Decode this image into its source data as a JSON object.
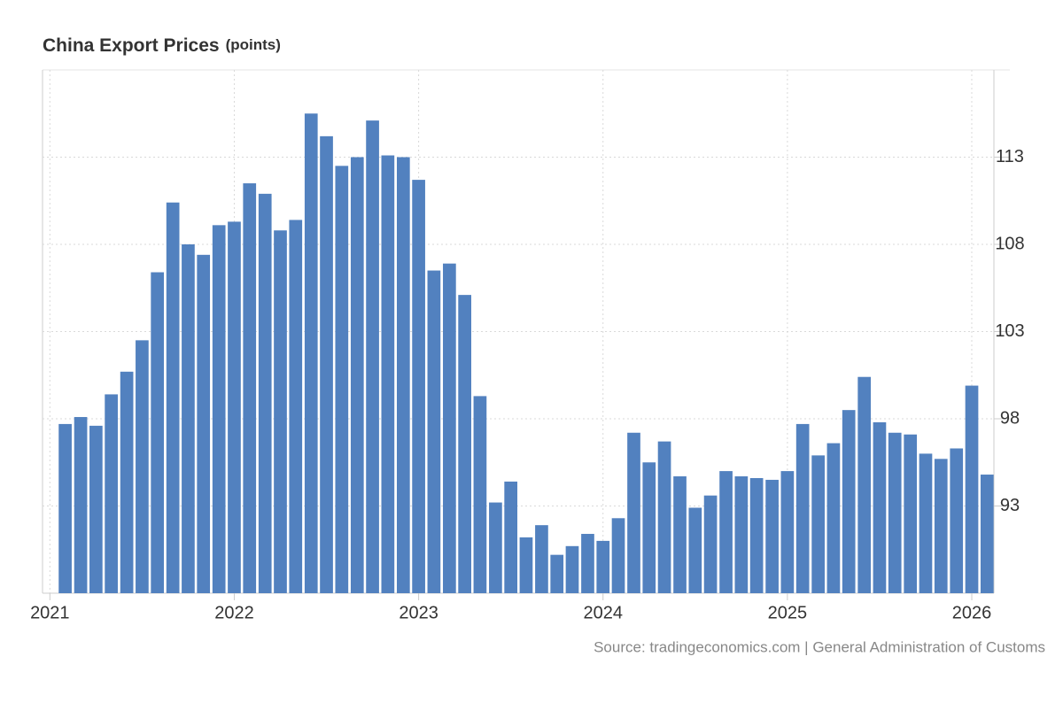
{
  "chart_data": {
    "type": "bar",
    "title": "China Export Prices",
    "unit": "(points)",
    "source": "Source: tradingeconomics.com | General Administration of Customs",
    "color": "#5281bf",
    "grid": true,
    "x": [
      2021.083,
      2021.167,
      2021.25,
      2021.333,
      2021.417,
      2021.5,
      2021.583,
      2021.667,
      2021.75,
      2021.833,
      2021.917,
      2022.0,
      2022.083,
      2022.167,
      2022.25,
      2022.333,
      2022.417,
      2022.5,
      2022.583,
      2022.667,
      2022.75,
      2022.833,
      2022.917,
      2023.0,
      2023.083,
      2023.167,
      2023.25,
      2023.333,
      2023.417,
      2023.5,
      2023.583,
      2023.667,
      2023.75,
      2023.833,
      2023.917,
      2024.0,
      2024.083,
      2024.167,
      2024.25,
      2024.333,
      2024.417,
      2024.5,
      2024.583,
      2024.667,
      2024.75,
      2024.833,
      2024.917,
      2025.0,
      2025.083,
      2025.167,
      2025.25,
      2025.333,
      2025.417,
      2025.5,
      2025.583,
      2025.667,
      2025.75,
      2025.833,
      2025.917,
      2026.0,
      2026.083
    ],
    "values": [
      97.7,
      98.1,
      97.6,
      99.4,
      100.7,
      102.5,
      106.4,
      110.4,
      108.0,
      107.4,
      109.1,
      109.3,
      111.5,
      110.9,
      108.8,
      109.4,
      115.5,
      114.2,
      112.5,
      113.0,
      115.1,
      113.1,
      113.0,
      111.7,
      106.5,
      106.9,
      105.1,
      99.3,
      93.2,
      94.4,
      91.2,
      91.9,
      90.2,
      90.7,
      91.4,
      91.0,
      92.3,
      97.2,
      95.5,
      96.7,
      94.7,
      92.9,
      93.6,
      95.0,
      94.7,
      94.6,
      94.5,
      95.0,
      97.7,
      95.9,
      96.6,
      98.5,
      100.4,
      97.8,
      97.2,
      97.1,
      96.0,
      95.7,
      96.3,
      99.9,
      94.8
    ],
    "xlim": [
      2020.96,
      2026.12
    ],
    "xticks": [
      2021,
      2022,
      2023,
      2024,
      2025,
      2026
    ],
    "ylim": [
      88,
      118
    ],
    "yticks": [
      93,
      98,
      103,
      108,
      113
    ]
  }
}
